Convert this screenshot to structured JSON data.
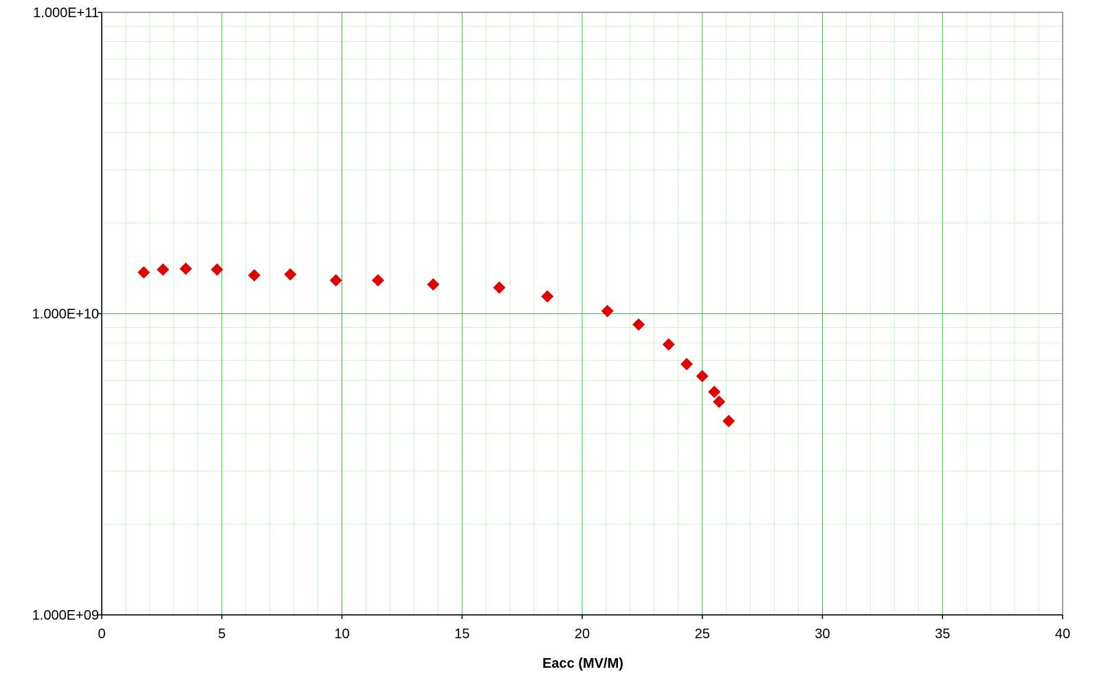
{
  "chart_data": {
    "type": "scatter",
    "title": "",
    "xlabel": "Eacc (MV/M)",
    "ylabel": "",
    "xlim": [
      0,
      40
    ],
    "ylim": [
      1000000000,
      100000000000
    ],
    "y_scale": "log",
    "x_ticks": [
      0,
      5,
      10,
      15,
      20,
      25,
      30,
      35,
      40
    ],
    "x_tick_labels": [
      "0",
      "5",
      "10",
      "15",
      "20",
      "25",
      "30",
      "35",
      "40"
    ],
    "y_ticks": [
      1000000000,
      10000000000,
      100000000000
    ],
    "y_tick_labels": [
      "1.000E+09",
      "1.000E+10",
      "1.000E+11"
    ],
    "grid": true,
    "legend": "none",
    "colors": {
      "major_grid": "#33cc33",
      "minor_grid": "#ccf5cc",
      "marker": "#e00000",
      "axis": "#000000"
    },
    "series": [
      {
        "marker": "diamond",
        "x": [
          1.75,
          2.55,
          3.5,
          4.8,
          6.35,
          7.85,
          9.75,
          11.5,
          13.8,
          16.55,
          18.55,
          21.05,
          22.35,
          23.6,
          24.35,
          25.0,
          25.5,
          25.7,
          26.1
        ],
        "y": [
          13700000000,
          14000000000,
          14100000000,
          14000000000,
          13400000000,
          13500000000,
          12900000000,
          12900000000,
          12500000000,
          12200000000,
          11400000000,
          10200000000,
          9200000000,
          7900000000,
          6800000000,
          6200000000,
          5500000000,
          5100000000,
          4400000000
        ]
      }
    ]
  }
}
